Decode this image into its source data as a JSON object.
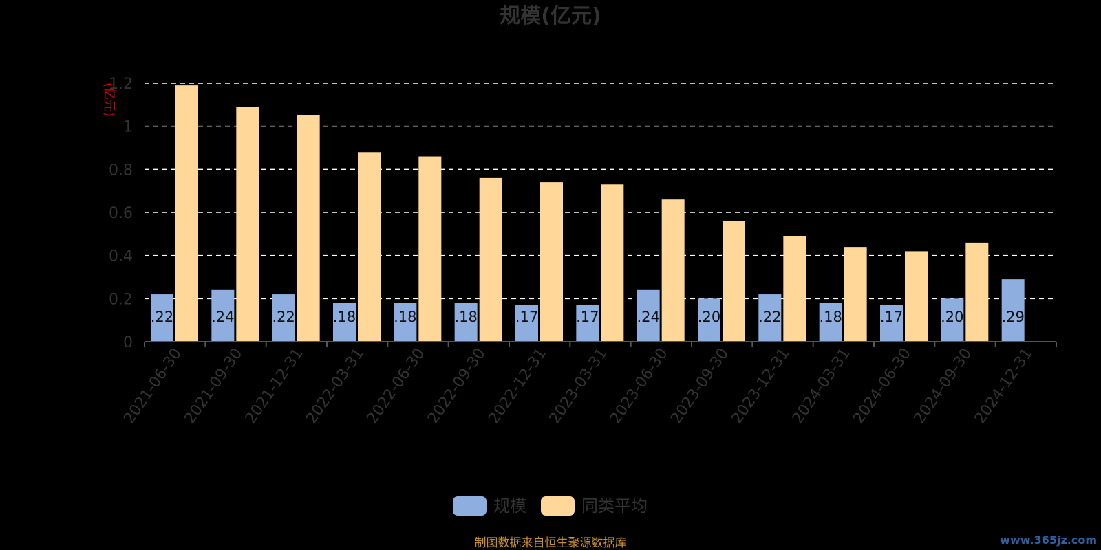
{
  "chart_data": {
    "type": "bar",
    "title": "规模(亿元)",
    "ylabel": "(亿元)",
    "xlabel": "",
    "ylim": [
      0,
      1.2
    ],
    "yticks": [
      0,
      0.2,
      0.4,
      0.6,
      0.8,
      1,
      1.2
    ],
    "ytick_labels": [
      "0",
      "0.2",
      "0.4",
      "0.6",
      "0.8",
      "1",
      "1.2"
    ],
    "grid": true,
    "legend_position": "bottom-center",
    "categories": [
      "2021-06-30",
      "2021-09-30",
      "2021-12-31",
      "2022-03-31",
      "2022-06-30",
      "2022-09-30",
      "2022-12-31",
      "2023-03-31",
      "2023-06-30",
      "2023-09-30",
      "2023-12-31",
      "2024-03-31",
      "2024-06-30",
      "2024-09-30",
      "2024-12-31"
    ],
    "series": [
      {
        "name": "规模",
        "color": "#8eaee0",
        "values": [
          0.22,
          0.24,
          0.22,
          0.18,
          0.18,
          0.18,
          0.17,
          0.17,
          0.24,
          0.2,
          0.22,
          0.18,
          0.17,
          0.2,
          0.29
        ],
        "labels": [
          ".22",
          ".24",
          ".22",
          ".18",
          ".18",
          ".18",
          ".17",
          ".17",
          ".24",
          ".20",
          ".22",
          ".18",
          ".17",
          ".20",
          ".29"
        ]
      },
      {
        "name": "同类平均",
        "color": "#ffd899",
        "values": [
          1.19,
          1.09,
          1.05,
          0.88,
          0.86,
          0.76,
          0.74,
          0.73,
          0.66,
          0.56,
          0.49,
          0.44,
          0.42,
          0.46,
          null
        ]
      }
    ]
  },
  "footer": {
    "source": "制图数据来自恒生聚源数据库",
    "watermark": "www.365jz.com"
  },
  "colors": {
    "background": "#000000",
    "axis": "#555555",
    "grid": "#ffffff"
  }
}
